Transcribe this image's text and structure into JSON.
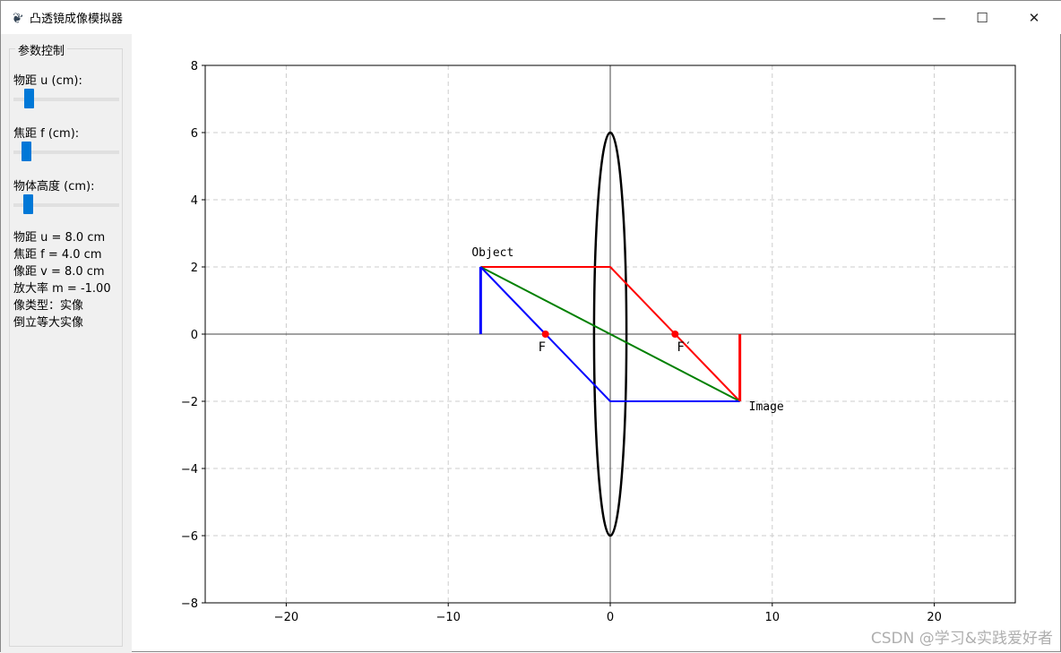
{
  "window": {
    "title": "凸透镜成像模拟器",
    "icon": "feather-icon",
    "minimize": "—",
    "maximize": "☐",
    "close": "✕"
  },
  "sidebar": {
    "frame_label": "参数控制",
    "sliders": [
      {
        "label": "物距 u (cm):",
        "value": 8.0
      },
      {
        "label": "焦距 f (cm):",
        "value": 4.0
      },
      {
        "label": "物体高度 (cm):",
        "value": 2.0
      }
    ],
    "info": [
      "物距 u = 8.0 cm",
      "焦距 f = 4.0 cm",
      "像距 v = 8.0 cm",
      "放大率 m = -1.00",
      "像类型：实像",
      "倒立等大实像"
    ]
  },
  "chart_data": {
    "type": "line",
    "xlim": [
      -25,
      25
    ],
    "ylim": [
      -8,
      8
    ],
    "xticks": [
      -20,
      -10,
      0,
      10,
      20
    ],
    "xtick_labels": [
      "−20",
      "−10",
      "0",
      "10",
      "20"
    ],
    "yticks": [
      -8,
      -6,
      -4,
      -2,
      0,
      2,
      4,
      6,
      8
    ],
    "ytick_labels": [
      "−8",
      "−6",
      "−4",
      "−2",
      "0",
      "2",
      "4",
      "6",
      "8"
    ],
    "grid": true,
    "lens": {
      "center": [
        0,
        0
      ],
      "half_width": 1,
      "half_height": 6,
      "color": "#000000"
    },
    "object": {
      "x": -8,
      "y0": 0,
      "y1": 2,
      "color": "#0000ff",
      "label": "Object"
    },
    "image": {
      "x": 8,
      "y0": 0,
      "y1": -2,
      "color": "#ff0000",
      "label": "Image"
    },
    "foci": [
      {
        "x": -4,
        "y": 0,
        "label": "F"
      },
      {
        "x": 4,
        "y": 0,
        "label": "F′"
      }
    ],
    "focus_color": "#ff0000",
    "rays": [
      {
        "color": "#ff0000",
        "points": [
          [
            -8,
            2
          ],
          [
            0,
            2
          ],
          [
            8,
            -2
          ]
        ]
      },
      {
        "color": "#008000",
        "points": [
          [
            -8,
            2
          ],
          [
            8,
            -2
          ]
        ]
      },
      {
        "color": "#0000ff",
        "points": [
          [
            -8,
            2
          ],
          [
            -4,
            0
          ],
          [
            0,
            -2
          ],
          [
            8,
            -2
          ]
        ]
      }
    ]
  },
  "watermark": "CSDN @学习&实践爱好者"
}
